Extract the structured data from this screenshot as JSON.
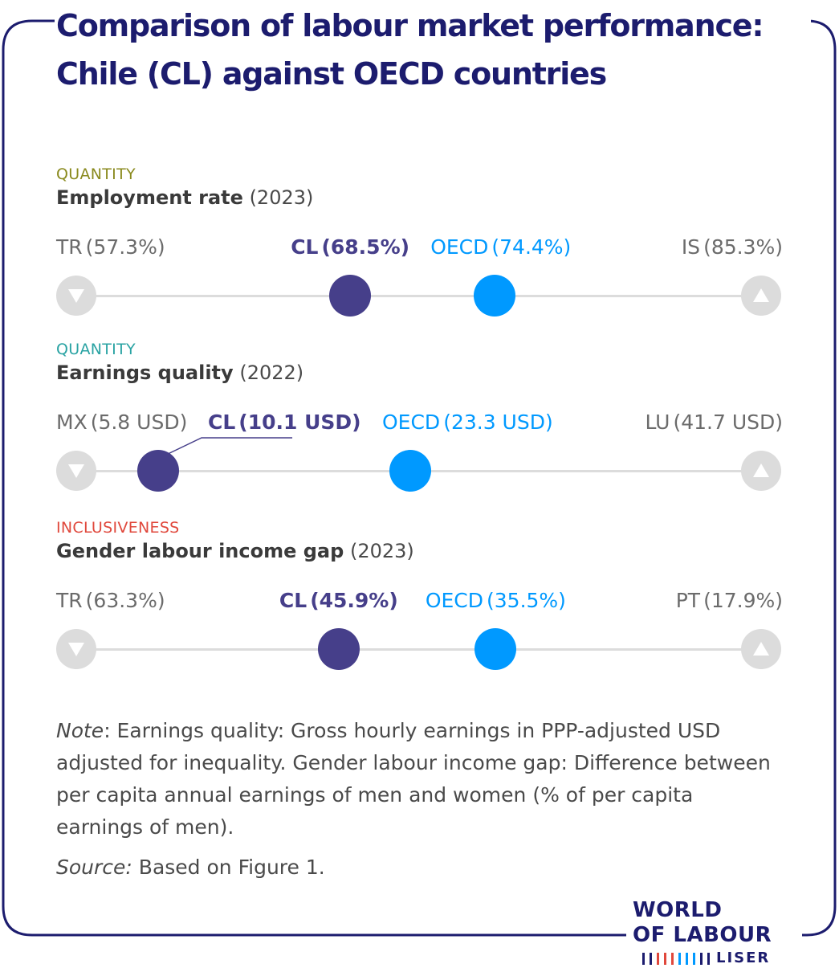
{
  "title": {
    "line1": "Comparison of labour market performance:",
    "line2": "Chile (CL) against OECD countries"
  },
  "colors": {
    "frame": "#1c1c6e",
    "chile": "#463f8a",
    "oecd": "#0099ff",
    "endpoint": "#dcdcdc",
    "category_quantity_1": "#8a8a1e",
    "category_quantity_2": "#2aa3a3",
    "category_inclusiveness": "#e0483c"
  },
  "chart_data": {
    "type": "scatter",
    "indicators": [
      {
        "category": "QUANTITY",
        "name": "Employment rate",
        "year": "(2023)",
        "unit": "%",
        "min": {
          "code": "TR",
          "label": "(57.3%)",
          "value": 57.3,
          "icon": "triangle-down-icon"
        },
        "chile": {
          "code": "CL",
          "label": "(68.5%)",
          "value": 68.5
        },
        "oecd": {
          "code": "OECD",
          "label": "(74.4%)",
          "value": 74.4
        },
        "max": {
          "code": "IS",
          "label": "(85.3%)",
          "value": 85.3,
          "icon": "triangle-up-icon"
        }
      },
      {
        "category": "QUANTITY",
        "name": "Earnings quality",
        "year": "(2022)",
        "unit": "USD",
        "min": {
          "code": "MX",
          "label": "(5.8 USD)",
          "value": 5.8,
          "icon": "triangle-down-icon"
        },
        "chile": {
          "code": "CL",
          "label": "(10.1 USD)",
          "value": 10.1
        },
        "oecd": {
          "code": "OECD",
          "label": "(23.3 USD)",
          "value": 23.3
        },
        "max": {
          "code": "LU",
          "label": "(41.7 USD)",
          "value": 41.7,
          "icon": "triangle-up-icon"
        }
      },
      {
        "category": "INCLUSIVENESS",
        "name": "Gender labour income gap",
        "year": "(2023)",
        "unit": "%",
        "reversed": true,
        "min": {
          "code": "TR",
          "label": "(63.3%)",
          "value": 63.3,
          "icon": "triangle-down-icon"
        },
        "chile": {
          "code": "CL",
          "label": "(45.9%)",
          "value": 45.9
        },
        "oecd": {
          "code": "OECD",
          "label": "(35.5%)",
          "value": 35.5
        },
        "max": {
          "code": "PT",
          "label": "(17.9%)",
          "value": 17.9,
          "icon": "triangle-up-icon"
        }
      }
    ]
  },
  "note": {
    "label": "Note",
    "text": ": Earnings quality: Gross hourly earnings in PPP-adjusted USD adjusted for inequality. Gender labour income gap: Difference between per capita annual earnings of men and women (% of per capita earnings of men).",
    "source_label": "Source:",
    "source_text": " Based on Figure 1."
  },
  "logo": {
    "line1": "WORLD",
    "line2": "OF LABOUR",
    "org": "LISER",
    "stripe_colors": [
      "#1c1c6e",
      "#1c1c6e",
      "#e0483c",
      "#e0483c",
      "#e0483c",
      "#0099ff",
      "#0099ff",
      "#0099ff",
      "#1c1c6e",
      "#1c1c6e"
    ]
  }
}
